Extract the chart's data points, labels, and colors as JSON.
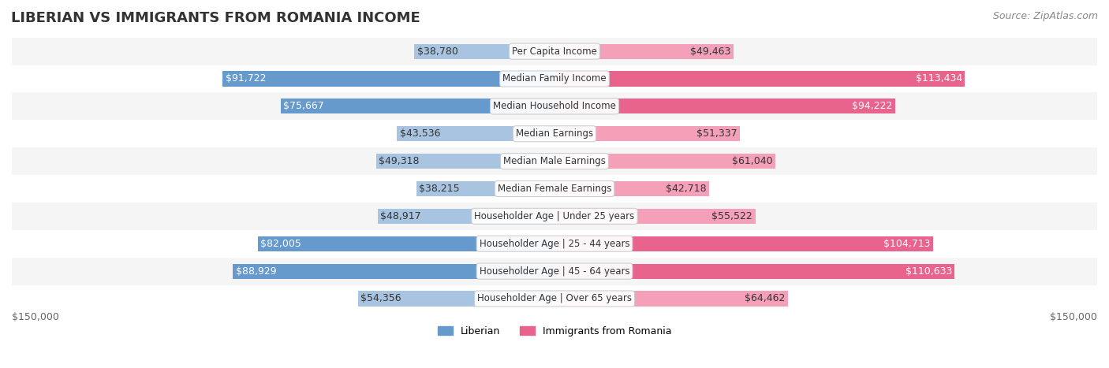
{
  "title": "LIBERIAN VS IMMIGRANTS FROM ROMANIA INCOME",
  "source": "Source: ZipAtlas.com",
  "categories": [
    "Per Capita Income",
    "Median Family Income",
    "Median Household Income",
    "Median Earnings",
    "Median Male Earnings",
    "Median Female Earnings",
    "Householder Age | Under 25 years",
    "Householder Age | 25 - 44 years",
    "Householder Age | 45 - 64 years",
    "Householder Age | Over 65 years"
  ],
  "liberian_values": [
    38780,
    91722,
    75667,
    43536,
    49318,
    38215,
    48917,
    82005,
    88929,
    54356
  ],
  "romania_values": [
    49463,
    113434,
    94222,
    51337,
    61040,
    42718,
    55522,
    104713,
    110633,
    64462
  ],
  "liberian_color_light": "#a8c4e0",
  "liberian_color_dark": "#6699cc",
  "romania_color_light": "#f4a0b8",
  "romania_color_dark": "#e8648c",
  "max_value": 150000,
  "label_liberian": "Liberian",
  "label_romania": "Immigrants from Romania",
  "row_bg_color": "#f0f0f0",
  "row_bg_alt": "#ffffff",
  "axis_label_left": "$150,000",
  "axis_label_right": "$150,000",
  "title_fontsize": 13,
  "source_fontsize": 9,
  "bar_label_fontsize": 9,
  "category_fontsize": 8.5
}
